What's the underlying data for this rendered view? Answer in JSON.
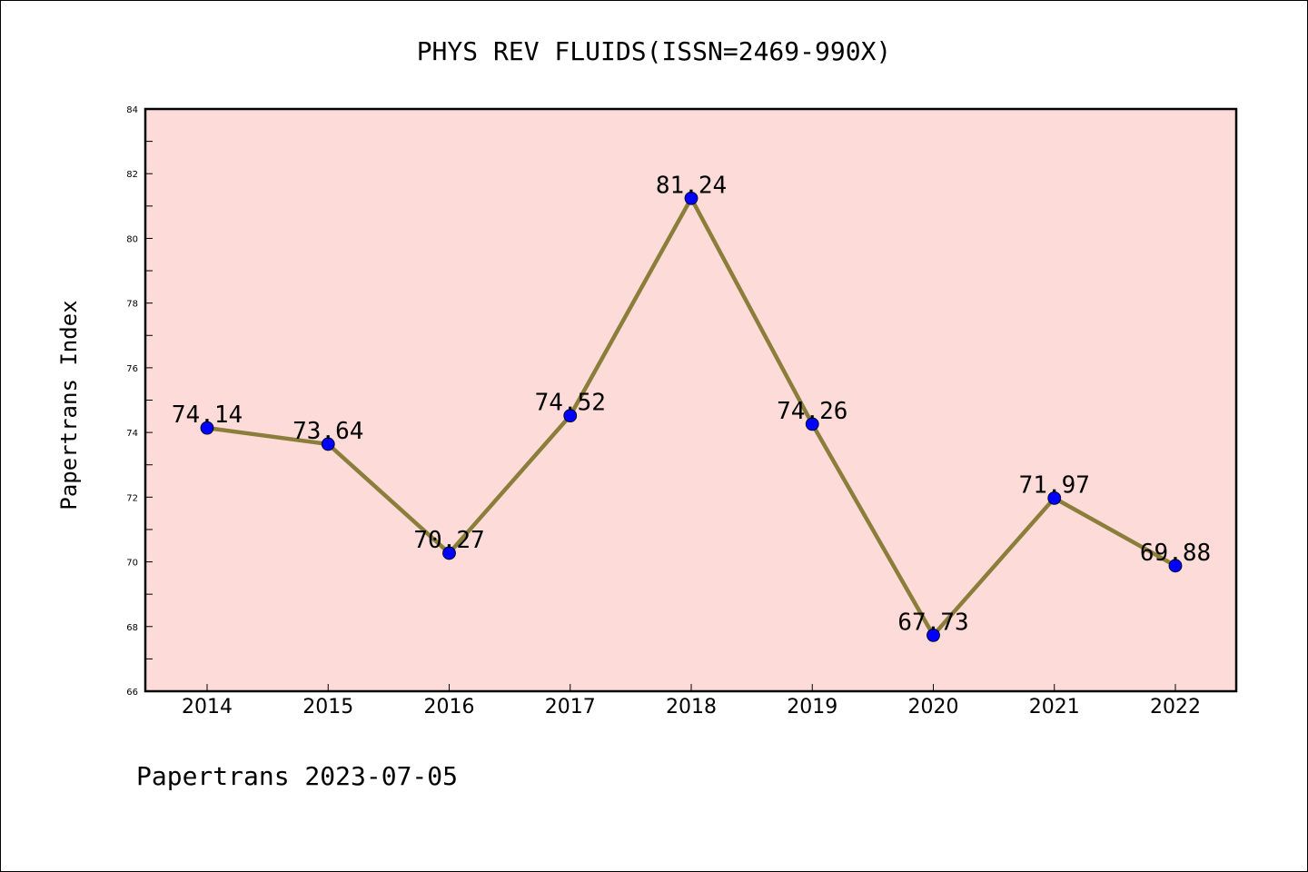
{
  "chart_data": {
    "type": "line",
    "title": "PHYS REV FLUIDS(ISSN=2469-990X)",
    "ylabel": "Papertrans Index",
    "xlabel": "",
    "footer": "Papertrans 2023-07-05",
    "categories": [
      "2014",
      "2015",
      "2016",
      "2017",
      "2018",
      "2019",
      "2020",
      "2021",
      "2022"
    ],
    "values": [
      74.14,
      73.64,
      70.27,
      74.52,
      81.24,
      74.26,
      67.73,
      71.97,
      69.88
    ],
    "value_labels": [
      "74.14",
      "73.64",
      "70.27",
      "74.52",
      "81.24",
      "74.26",
      "67.73",
      "71.97",
      "69.88"
    ],
    "ylim": [
      66,
      84
    ],
    "yticks": [
      "66",
      "68",
      "70",
      "72",
      "74",
      "76",
      "78",
      "80",
      "82",
      "84"
    ],
    "grid": false,
    "colors": {
      "plot_background": "#fddbd8",
      "line": "#8b7d3a",
      "marker": "#0000ff"
    }
  }
}
